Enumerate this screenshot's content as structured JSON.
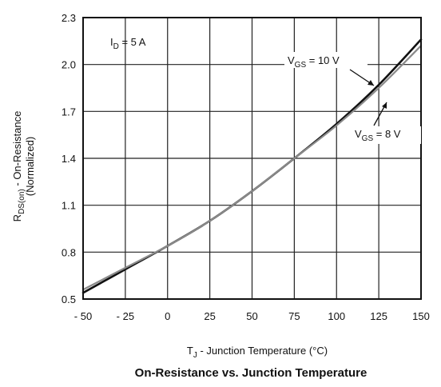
{
  "chart_data": {
    "type": "line",
    "title": "On-Resistance vs. Junction Temperature",
    "xlabel": {
      "prefix": "T",
      "sub": "J",
      "suffix": " - Junction Temperature (°C)"
    },
    "ylabel": {
      "line1_prefix": "R",
      "line1_sub": "DS(on)",
      "line1_suffix": " - On-Resistance",
      "line2": "(Normalized)"
    },
    "xlim": [
      -50,
      150
    ],
    "ylim": [
      0.5,
      2.3
    ],
    "xticks": [
      -50,
      -25,
      0,
      25,
      50,
      75,
      100,
      125,
      150
    ],
    "xtick_labels": [
      "- 50",
      "- 25",
      "0",
      "25",
      "50",
      "75",
      "100",
      "125",
      "150"
    ],
    "yticks": [
      0.5,
      0.8,
      1.1,
      1.4,
      1.7,
      2.0,
      2.3
    ],
    "ytick_labels": [
      "0.5",
      "0.8",
      "1.1",
      "1.4",
      "1.7",
      "2.0",
      "2.3"
    ],
    "grid": true,
    "x": [
      -50,
      -25,
      0,
      25,
      50,
      75,
      100,
      125,
      150
    ],
    "series": [
      {
        "name": "VGS = 10 V",
        "values": [
          0.54,
          0.69,
          0.84,
          1.0,
          1.19,
          1.4,
          1.62,
          1.87,
          2.16
        ]
      },
      {
        "name": "VGS = 8 V",
        "values": [
          0.56,
          0.7,
          0.84,
          1.0,
          1.19,
          1.4,
          1.61,
          1.85,
          2.12
        ]
      }
    ],
    "annotations": [
      {
        "prefix": "I",
        "sub": "D",
        "suffix": " = 5 A"
      },
      {
        "prefix": "V",
        "sub": "GS",
        "suffix": " = 10 V"
      },
      {
        "prefix": "V",
        "sub": "GS",
        "suffix": " = 8 V"
      }
    ]
  }
}
